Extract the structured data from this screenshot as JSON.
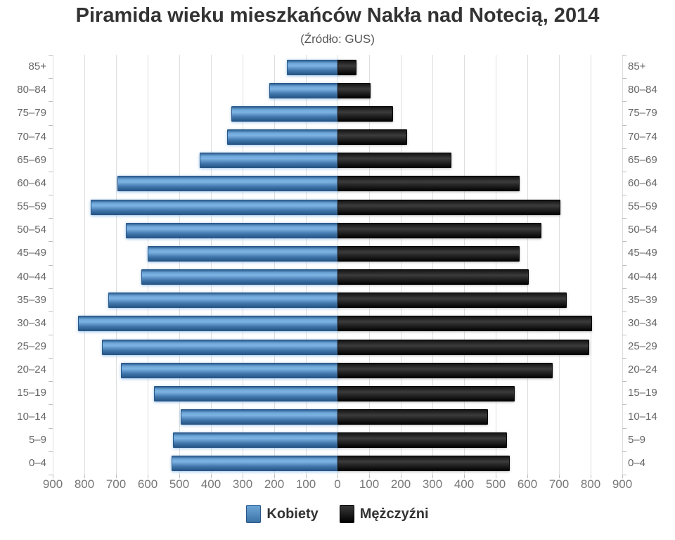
{
  "title": "Piramida wieku mieszkańców Nakła nad Notecią, 2014",
  "subtitle": "(Źródło: GUS)",
  "legend": {
    "female": "Kobiety",
    "male": "Mężczyźni"
  },
  "colors": {
    "female_bar": "#4a86c0",
    "female_bar_dark": "#1f4e79",
    "male_bar": "#1a1a1a",
    "grid": "#dedede",
    "tick": "#bdbdbd",
    "axis_label": "#777777",
    "category_label": "#666666",
    "title_text": "#333333"
  },
  "chart_data": {
    "type": "bar",
    "subtype": "population-pyramid",
    "title": "Piramida wieku mieszkańców Nakła nad Notecią, 2014",
    "subtitle": "(Źródło: GUS)",
    "categories": [
      "85+",
      "80–84",
      "75–79",
      "70–74",
      "65–69",
      "60–64",
      "55–59",
      "50–54",
      "45–49",
      "40–44",
      "35–39",
      "30–34",
      "25–29",
      "20–24",
      "15–19",
      "10–14",
      "5–9",
      "0–4"
    ],
    "series": [
      {
        "name": "Kobiety",
        "side": "left",
        "values": [
          160,
          215,
          335,
          350,
          435,
          695,
          780,
          670,
          600,
          620,
          725,
          820,
          745,
          685,
          580,
          495,
          520,
          525
        ]
      },
      {
        "name": "Mężczyźni",
        "side": "right",
        "values": [
          55,
          100,
          170,
          215,
          355,
          570,
          700,
          640,
          570,
          600,
          720,
          800,
          790,
          675,
          555,
          470,
          530,
          540
        ]
      }
    ],
    "axis_max_each_side": 900,
    "x_ticks": [
      "900",
      "800",
      "700",
      "600",
      "500",
      "400",
      "300",
      "200",
      "100",
      "0",
      "100",
      "200",
      "300",
      "400",
      "500",
      "600",
      "700",
      "800",
      "900"
    ],
    "grid": true,
    "legend_position": "bottom"
  }
}
